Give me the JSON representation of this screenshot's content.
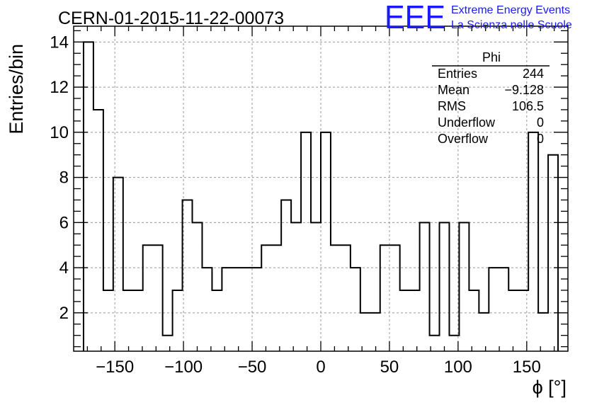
{
  "header": {
    "run_title": "CERN-01-2015-11-22-00073",
    "logo_text": "EEE",
    "logo_line1": "Extreme Energy Events",
    "logo_line2": "La Scienza nelle Scuole",
    "logo_color": "#1a1aff"
  },
  "stats_box": {
    "title": "Phi",
    "rows": [
      {
        "label": "Entries",
        "value": "244"
      },
      {
        "label": "Mean",
        "value": "−9.128"
      },
      {
        "label": "RMS",
        "value": "106.5"
      },
      {
        "label": "Underflow",
        "value": "0"
      },
      {
        "label": "Overflow",
        "value": "0"
      }
    ]
  },
  "chart_data": {
    "type": "histogram",
    "xlabel": "ϕ [°]",
    "ylabel": "Entries/bin",
    "xlim": [
      -180,
      180
    ],
    "ylim": [
      0.3,
      14.7
    ],
    "grid": true,
    "bin_width": 7.2,
    "bin_edges_start": -172.8,
    "values": [
      14,
      11,
      3,
      8,
      3,
      3,
      5,
      5,
      1,
      3,
      7,
      6,
      4,
      3,
      4,
      4,
      4,
      4,
      5,
      5,
      7,
      6,
      10,
      6,
      10,
      5,
      5,
      4,
      2,
      2,
      5,
      5,
      3,
      3,
      6,
      1,
      6,
      1,
      6,
      3,
      2,
      4,
      4,
      3,
      3,
      10,
      2,
      9
    ],
    "x_ticks": [
      -150,
      -100,
      -50,
      0,
      50,
      100,
      150
    ],
    "x_tick_labels": [
      "−150",
      "−100",
      "−50",
      "0",
      "50",
      "100",
      "150"
    ],
    "y_ticks": [
      2,
      4,
      6,
      8,
      10,
      12,
      14
    ],
    "y_tick_labels": [
      "2",
      "4",
      "6",
      "8",
      "10",
      "12",
      "14"
    ]
  }
}
